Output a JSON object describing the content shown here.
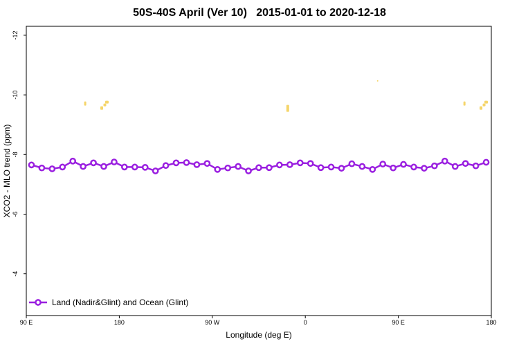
{
  "chart_data": {
    "type": "line",
    "title": "50S-40S April (Ver 10)   2015-01-01 to 2020-12-18",
    "xlabel": "Longitude (deg E)",
    "ylabel": "XCO2 - MLO trend (ppm)",
    "x_ticks": [
      {
        "value": 90,
        "label": "90 E"
      },
      {
        "value": 180,
        "label": "180"
      },
      {
        "value": 270,
        "label": "90 W"
      },
      {
        "value": 360,
        "label": "0"
      },
      {
        "value": 450,
        "label": "90 E"
      },
      {
        "value": 540,
        "label": "180"
      }
    ],
    "y_ticks": [
      -4,
      -6,
      -8,
      -10,
      -12
    ],
    "xlim": [
      90,
      540
    ],
    "ylim": [
      -12.3,
      -2.6
    ],
    "y_inverted": true,
    "grid": false,
    "legend_position": "bottom-left",
    "series": [
      {
        "name": "Land (Nadir&Glint) and Ocean (Glint)",
        "color": "#9a1fe0",
        "x": [
          95,
          105,
          115,
          125,
          135,
          145,
          155,
          165,
          175,
          185,
          195,
          205,
          215,
          225,
          235,
          245,
          255,
          265,
          275,
          285,
          295,
          305,
          315,
          325,
          335,
          345,
          355,
          365,
          375,
          385,
          395,
          405,
          415,
          425,
          435,
          445,
          455,
          465,
          475,
          485,
          495,
          505,
          515,
          525,
          535
        ],
        "values": [
          -7.65,
          -7.55,
          -7.52,
          -7.58,
          -7.78,
          -7.6,
          -7.72,
          -7.6,
          -7.75,
          -7.58,
          -7.58,
          -7.57,
          -7.45,
          -7.63,
          -7.72,
          -7.73,
          -7.66,
          -7.7,
          -7.5,
          -7.55,
          -7.6,
          -7.45,
          -7.56,
          -7.56,
          -7.65,
          -7.66,
          -7.72,
          -7.7,
          -7.56,
          -7.58,
          -7.54,
          -7.69,
          -7.6,
          -7.5,
          -7.68,
          -7.55,
          -7.67,
          -7.58,
          -7.54,
          -7.62,
          -7.78,
          -7.6,
          -7.7,
          -7.62,
          -7.74
        ]
      }
    ],
    "background_band": {
      "y_range": [
        -9.85,
        -10.4
      ],
      "ocean_color": "#a8bcd8",
      "land_color": "#f5d56a"
    }
  }
}
